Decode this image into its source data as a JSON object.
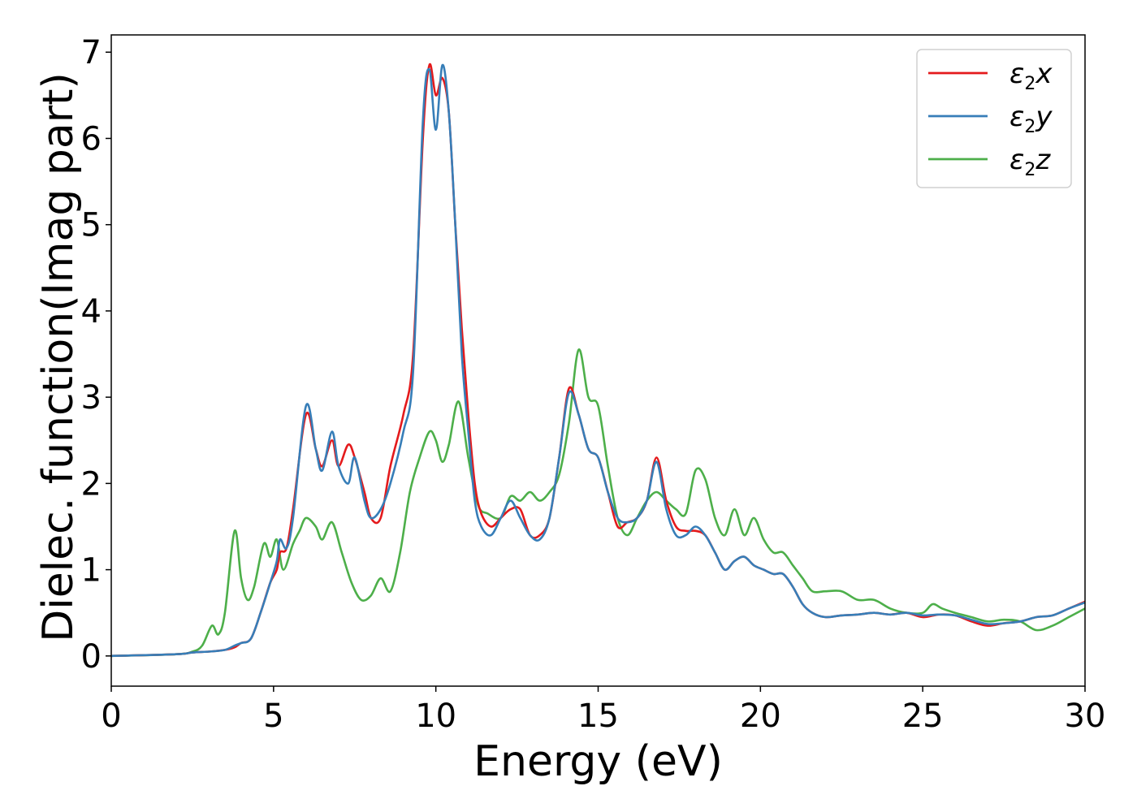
{
  "chart_data": {
    "type": "line",
    "xlabel": "Energy (eV)",
    "ylabel": "Dielec. function(Imag part)",
    "xlim": [
      0,
      30
    ],
    "ylim": [
      -0.35,
      7.2
    ],
    "xticks": [
      0,
      5,
      10,
      15,
      20,
      25,
      30
    ],
    "yticks": [
      0,
      1,
      2,
      3,
      4,
      5,
      6,
      7
    ],
    "grid": false,
    "legend_position": "top-right",
    "series": [
      {
        "name": "ε₂x",
        "legend": {
          "base": "ε",
          "sub": "2",
          "suffix": "x"
        },
        "color": "#e41a1c",
        "x": [
          0,
          2,
          2.5,
          3,
          3.5,
          3.8,
          4.0,
          4.3,
          4.6,
          4.9,
          5.1,
          5.2,
          5.4,
          5.6,
          6.0,
          6.3,
          6.5,
          6.8,
          7.0,
          7.3,
          7.5,
          7.8,
          8.0,
          8.3,
          8.6,
          9.0,
          9.3,
          9.6,
          9.8,
          10.0,
          10.2,
          10.4,
          10.6,
          10.8,
          11.0,
          11.2,
          11.4,
          11.7,
          12.0,
          12.3,
          12.6,
          12.9,
          13.2,
          13.5,
          13.8,
          14.1,
          14.4,
          14.7,
          15.0,
          15.3,
          15.6,
          15.9,
          16.2,
          16.5,
          16.8,
          17.1,
          17.4,
          17.7,
          18.0,
          18.3,
          18.6,
          18.9,
          19.2,
          19.5,
          19.8,
          20.1,
          20.4,
          20.7,
          21.0,
          21.3,
          21.6,
          22.0,
          22.5,
          23.0,
          23.5,
          24.0,
          24.5,
          25.0,
          25.5,
          26.0,
          26.5,
          27.0,
          27.5,
          28.0,
          28.5,
          29.0,
          29.5,
          30.0
        ],
        "values": [
          0,
          0.02,
          0.04,
          0.05,
          0.07,
          0.1,
          0.15,
          0.2,
          0.5,
          0.85,
          1.0,
          1.2,
          1.25,
          1.7,
          2.8,
          2.4,
          2.2,
          2.5,
          2.2,
          2.45,
          2.3,
          1.9,
          1.6,
          1.6,
          2.2,
          2.8,
          3.5,
          6.0,
          6.85,
          6.5,
          6.7,
          6.3,
          5.0,
          3.8,
          2.8,
          2.0,
          1.65,
          1.5,
          1.6,
          1.7,
          1.7,
          1.4,
          1.4,
          1.6,
          2.3,
          3.1,
          2.8,
          2.4,
          2.3,
          1.9,
          1.5,
          1.55,
          1.6,
          1.8,
          2.3,
          1.8,
          1.5,
          1.45,
          1.45,
          1.4,
          1.2,
          1.0,
          1.1,
          1.15,
          1.05,
          1.0,
          0.95,
          0.95,
          0.8,
          0.6,
          0.5,
          0.45,
          0.47,
          0.48,
          0.5,
          0.48,
          0.5,
          0.45,
          0.48,
          0.47,
          0.4,
          0.35,
          0.38,
          0.4,
          0.45,
          0.47,
          0.55,
          0.63
        ]
      },
      {
        "name": "ε₂y",
        "legend": {
          "base": "ε",
          "sub": "2",
          "suffix": "y"
        },
        "color": "#377eb8",
        "x": [
          0,
          2,
          2.5,
          3,
          3.5,
          3.8,
          4.0,
          4.3,
          4.6,
          4.9,
          5.1,
          5.2,
          5.4,
          5.6,
          6.0,
          6.3,
          6.5,
          6.8,
          7.0,
          7.3,
          7.5,
          7.8,
          8.0,
          8.3,
          8.6,
          9.0,
          9.3,
          9.6,
          9.8,
          10.0,
          10.2,
          10.4,
          10.6,
          10.8,
          11.0,
          11.2,
          11.4,
          11.7,
          12.0,
          12.3,
          12.6,
          12.9,
          13.2,
          13.5,
          13.8,
          14.1,
          14.4,
          14.7,
          15.0,
          15.3,
          15.6,
          15.9,
          16.2,
          16.5,
          16.8,
          17.1,
          17.4,
          17.7,
          18.0,
          18.3,
          18.6,
          18.9,
          19.2,
          19.5,
          19.8,
          20.1,
          20.4,
          20.7,
          21.0,
          21.3,
          21.6,
          22.0,
          22.5,
          23.0,
          23.5,
          24.0,
          24.5,
          25.0,
          25.5,
          26.0,
          26.5,
          27.0,
          27.5,
          28.0,
          28.5,
          29.0,
          29.5,
          30.0
        ],
        "values": [
          0,
          0.02,
          0.04,
          0.05,
          0.07,
          0.12,
          0.15,
          0.2,
          0.5,
          0.85,
          1.1,
          1.35,
          1.25,
          1.6,
          2.9,
          2.4,
          2.15,
          2.6,
          2.2,
          2.0,
          2.3,
          1.8,
          1.6,
          1.7,
          2.0,
          2.6,
          3.3,
          6.2,
          6.8,
          6.1,
          6.85,
          6.3,
          5.0,
          3.5,
          2.6,
          1.8,
          1.5,
          1.4,
          1.6,
          1.8,
          1.6,
          1.4,
          1.35,
          1.6,
          2.3,
          3.05,
          2.8,
          2.4,
          2.3,
          1.9,
          1.6,
          1.55,
          1.6,
          1.8,
          2.25,
          1.7,
          1.4,
          1.4,
          1.5,
          1.4,
          1.2,
          1.0,
          1.1,
          1.15,
          1.05,
          1.0,
          0.95,
          0.95,
          0.8,
          0.6,
          0.5,
          0.45,
          0.47,
          0.48,
          0.5,
          0.48,
          0.5,
          0.47,
          0.48,
          0.47,
          0.42,
          0.37,
          0.38,
          0.4,
          0.45,
          0.47,
          0.55,
          0.62
        ]
      },
      {
        "name": "ε₂z",
        "legend": {
          "base": "ε",
          "sub": "2",
          "suffix": "z"
        },
        "color": "#4daf4a",
        "x": [
          0,
          2,
          2.5,
          2.8,
          3.1,
          3.3,
          3.5,
          3.8,
          4.0,
          4.2,
          4.4,
          4.7,
          4.9,
          5.1,
          5.3,
          5.6,
          5.8,
          6.0,
          6.3,
          6.5,
          6.8,
          7.1,
          7.4,
          7.7,
          8.0,
          8.3,
          8.6,
          8.9,
          9.2,
          9.5,
          9.8,
          10.0,
          10.2,
          10.4,
          10.7,
          11.0,
          11.3,
          11.6,
          12.0,
          12.3,
          12.6,
          12.9,
          13.2,
          13.5,
          13.8,
          14.1,
          14.4,
          14.7,
          15.0,
          15.3,
          15.6,
          15.9,
          16.2,
          16.5,
          16.8,
          17.1,
          17.4,
          17.7,
          18.0,
          18.3,
          18.6,
          18.9,
          19.2,
          19.5,
          19.8,
          20.1,
          20.4,
          20.7,
          21.0,
          21.3,
          21.6,
          22.0,
          22.5,
          23.0,
          23.5,
          24.0,
          24.5,
          25.0,
          25.3,
          25.6,
          26.0,
          26.5,
          27.0,
          27.5,
          28.0,
          28.5,
          29.0,
          29.5,
          30.0
        ],
        "values": [
          0,
          0.02,
          0.05,
          0.12,
          0.35,
          0.25,
          0.5,
          1.45,
          0.9,
          0.65,
          0.8,
          1.3,
          1.15,
          1.35,
          1.0,
          1.3,
          1.45,
          1.6,
          1.5,
          1.35,
          1.55,
          1.2,
          0.85,
          0.65,
          0.7,
          0.9,
          0.75,
          1.2,
          1.9,
          2.3,
          2.6,
          2.5,
          2.25,
          2.45,
          2.95,
          2.3,
          1.75,
          1.65,
          1.6,
          1.85,
          1.8,
          1.9,
          1.8,
          1.9,
          2.1,
          2.7,
          3.55,
          3.0,
          2.9,
          2.2,
          1.6,
          1.4,
          1.6,
          1.8,
          1.9,
          1.8,
          1.7,
          1.65,
          2.15,
          2.05,
          1.6,
          1.4,
          1.7,
          1.4,
          1.6,
          1.35,
          1.2,
          1.2,
          1.05,
          0.9,
          0.75,
          0.75,
          0.75,
          0.65,
          0.65,
          0.55,
          0.5,
          0.5,
          0.6,
          0.55,
          0.5,
          0.45,
          0.4,
          0.42,
          0.4,
          0.3,
          0.35,
          0.45,
          0.55
        ]
      }
    ]
  }
}
